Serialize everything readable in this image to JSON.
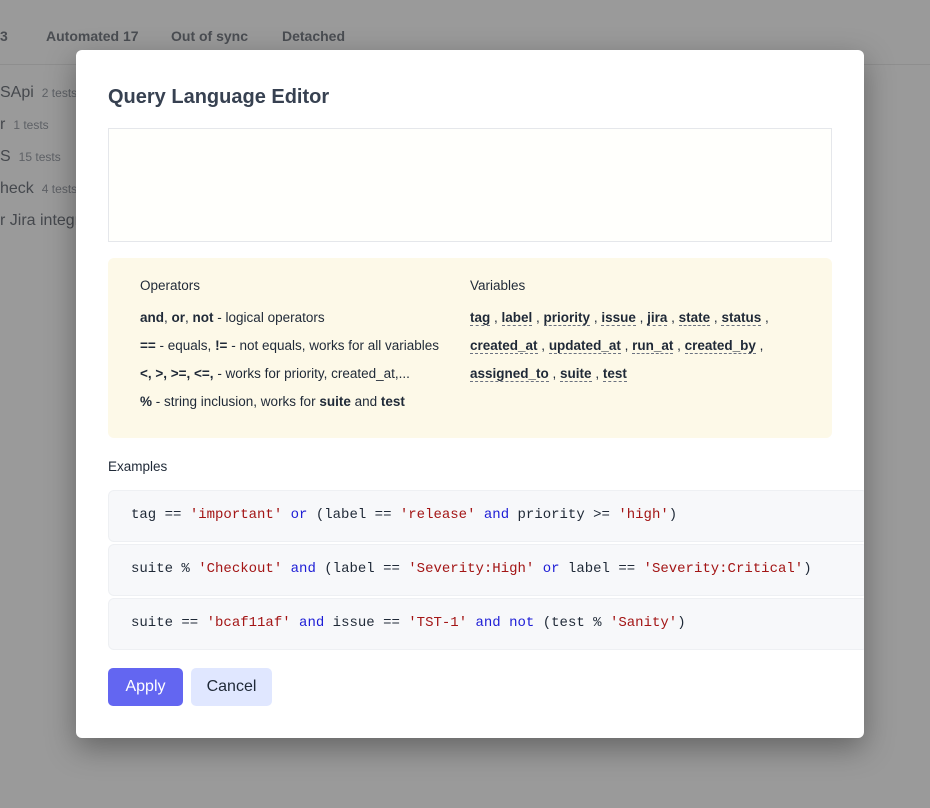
{
  "background": {
    "tabs": [
      "3",
      "Automated 17",
      "Out of sync",
      "Detached"
    ],
    "items": [
      {
        "name": "SApi",
        "count": "2 tests"
      },
      {
        "name": "r",
        "count": "1 tests"
      },
      {
        "name": "S",
        "count": "15 tests"
      },
      {
        "name": "heck",
        "count": "4 tests"
      },
      {
        "name": "r Jira integr",
        "count": ""
      }
    ]
  },
  "modal": {
    "title": "Query Language Editor",
    "query_value": "",
    "operators": {
      "heading": "Operators",
      "lines": [
        {
          "bold": "and",
          "a": ", ",
          "bold2": "or",
          "b": ", ",
          "bold3": "not",
          "rest": " - logical operators"
        },
        {
          "bold": "==",
          "a": " - equals, ",
          "bold2": "!=",
          "b": " - not equals, works for all variables",
          "bold3": "",
          "rest": ""
        },
        {
          "bold": "<, >, >=, <=,",
          "a": " - works for priority, created_at,...",
          "bold2": "",
          "b": "",
          "bold3": "",
          "rest": ""
        },
        {
          "bold": "%",
          "a": " - string inclusion, works for ",
          "bold2": "suite",
          "b": " and ",
          "bold3": "test",
          "rest": ""
        }
      ]
    },
    "variables": {
      "heading": "Variables",
      "rows": [
        [
          "tag",
          "label",
          "priority",
          "issue",
          "jira",
          "state",
          "status"
        ],
        [
          "created_at",
          "updated_at",
          "run_at",
          "created_by"
        ],
        [
          "assigned_to",
          "suite",
          "test"
        ]
      ]
    },
    "examples_label": "Examples",
    "examples": [
      [
        [
          "tag == ",
          "t"
        ],
        [
          "'important'",
          "s"
        ],
        [
          " ",
          "t"
        ],
        [
          "or",
          "k"
        ],
        [
          " (label == ",
          "t"
        ],
        [
          "'release'",
          "s"
        ],
        [
          " ",
          "t"
        ],
        [
          "and",
          "k"
        ],
        [
          " priority >= ",
          "t"
        ],
        [
          "'high'",
          "s"
        ],
        [
          ")",
          "t"
        ]
      ],
      [
        [
          "suite % ",
          "t"
        ],
        [
          "'Checkout'",
          "s"
        ],
        [
          " ",
          "t"
        ],
        [
          "and",
          "k"
        ],
        [
          " (label == ",
          "t"
        ],
        [
          "'Severity:High'",
          "s"
        ],
        [
          " ",
          "t"
        ],
        [
          "or",
          "k"
        ],
        [
          " label == ",
          "t"
        ],
        [
          "'Severity:Critical'",
          "s"
        ],
        [
          ")",
          "t"
        ]
      ],
      [
        [
          "suite == ",
          "t"
        ],
        [
          "'bcaf11af'",
          "s"
        ],
        [
          " ",
          "t"
        ],
        [
          "and",
          "k"
        ],
        [
          " issue == ",
          "t"
        ],
        [
          "'TST-1'",
          "s"
        ],
        [
          " ",
          "t"
        ],
        [
          "and",
          "k"
        ],
        [
          " ",
          "t"
        ],
        [
          "not",
          "k"
        ],
        [
          " (test % ",
          "t"
        ],
        [
          "'Sanity'",
          "s"
        ],
        [
          ")",
          "t"
        ]
      ]
    ],
    "apply_label": "Apply",
    "cancel_label": "Cancel"
  },
  "colors": {
    "accent": "#6366f1",
    "keyword": "#1d1dd6",
    "string": "#a31515",
    "help_bg": "#fdf9e8"
  }
}
